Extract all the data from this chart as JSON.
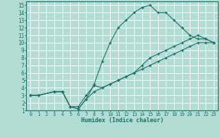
{
  "xlabel": "Humidex (Indice chaleur)",
  "bg_color": "#b2ddd4",
  "grid_color": "#ffffff",
  "line_color": "#1a7065",
  "xlim": [
    -0.5,
    23.5
  ],
  "ylim": [
    1,
    15.5
  ],
  "xticks": [
    0,
    1,
    2,
    3,
    4,
    5,
    6,
    7,
    8,
    9,
    10,
    11,
    12,
    13,
    14,
    15,
    16,
    17,
    18,
    19,
    20,
    21,
    22,
    23
  ],
  "yticks": [
    1,
    2,
    3,
    4,
    5,
    6,
    7,
    8,
    9,
    10,
    11,
    12,
    13,
    14,
    15
  ],
  "curve_upper_x": [
    0,
    1,
    3,
    4,
    5,
    6,
    7,
    8,
    9,
    10,
    11,
    12,
    13,
    14,
    15,
    16,
    17,
    18,
    19,
    20,
    21,
    22,
    23
  ],
  "curve_upper_y": [
    3,
    3,
    3.5,
    3.5,
    1.5,
    1.2,
    2.5,
    4.5,
    7.5,
    10,
    12,
    13,
    14,
    14.7,
    15,
    14,
    14,
    13,
    12,
    11,
    10.5,
    10.5,
    10
  ],
  "curve_mid_x": [
    0,
    1,
    3,
    4,
    5,
    6,
    7,
    8,
    9,
    10,
    11,
    12,
    13,
    14,
    15,
    16,
    17,
    18,
    19,
    20,
    21,
    22,
    23
  ],
  "curve_mid_y": [
    3,
    3,
    3.5,
    3.5,
    1.5,
    1.5,
    3,
    4.3,
    4,
    4.5,
    5,
    5.5,
    6,
    7,
    8,
    8.5,
    9,
    9.5,
    10,
    10.5,
    11,
    10.5,
    10
  ],
  "curve_lower_x": [
    0,
    1,
    3,
    4,
    5,
    6,
    7,
    8,
    9,
    10,
    11,
    12,
    13,
    14,
    15,
    16,
    17,
    18,
    19,
    20,
    21,
    22,
    23
  ],
  "curve_lower_y": [
    3,
    3,
    3.5,
    3.5,
    1.5,
    1.2,
    2.5,
    3.5,
    4,
    4.5,
    5,
    5.5,
    6,
    6.5,
    7,
    7.5,
    8,
    8.5,
    9,
    9.5,
    10,
    10,
    10
  ]
}
